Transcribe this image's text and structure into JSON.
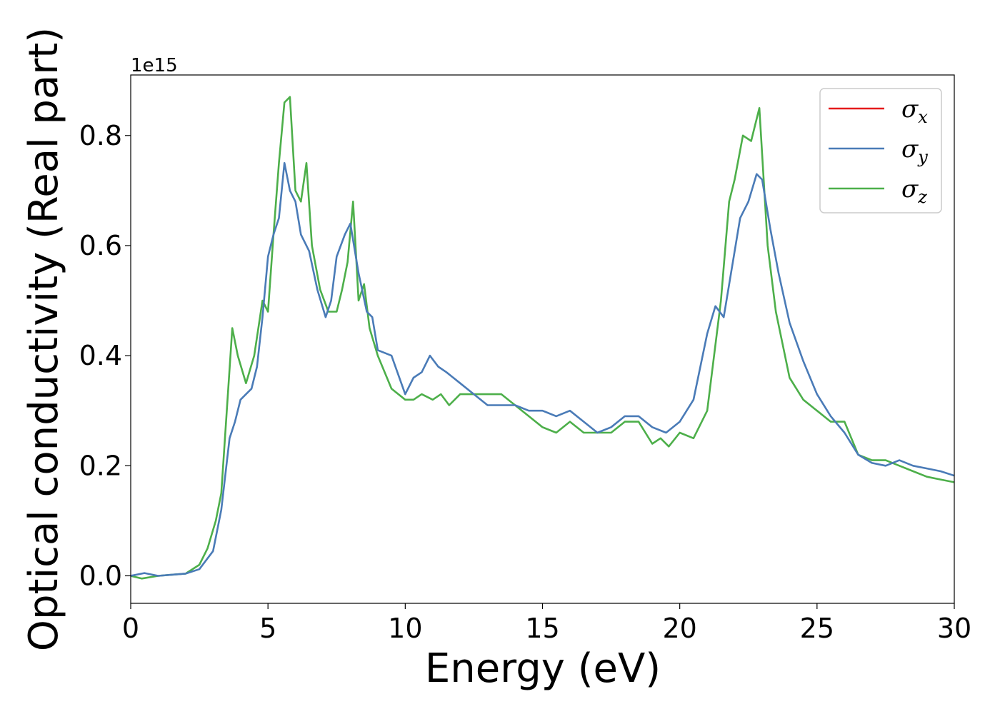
{
  "chart_data": {
    "type": "line",
    "xlabel": "Energy (eV)",
    "ylabel": "Optical conductivity (Real part)",
    "y_offset_text": "1e15",
    "xlim": [
      0,
      30
    ],
    "ylim": [
      -0.05,
      0.91
    ],
    "xticks": [
      0,
      5,
      10,
      15,
      20,
      25,
      30
    ],
    "xtick_labels": [
      "0",
      "5",
      "10",
      "15",
      "20",
      "25",
      "30"
    ],
    "yticks": [
      0.0,
      0.2,
      0.4,
      0.6,
      0.8
    ],
    "ytick_labels": [
      "0.0",
      "0.2",
      "0.4",
      "0.6",
      "0.8"
    ],
    "grid": false,
    "legend_position": "top-right",
    "series": [
      {
        "name": "σx",
        "symbol": "σ",
        "sub": "x",
        "color": "#e41a1c",
        "legend_only": true,
        "x": [
          0,
          0.5,
          1,
          1.5,
          2,
          2.5,
          3,
          3.3,
          3.6,
          3.8,
          4,
          4.2,
          4.4,
          4.6,
          4.8,
          5,
          5.2,
          5.4,
          5.6,
          5.8,
          6,
          6.2,
          6.5,
          6.8,
          7.1,
          7.3,
          7.5,
          7.8,
          8,
          8.3,
          8.6,
          8.8,
          9,
          9.5,
          10,
          10.3,
          10.6,
          10.9,
          11.2,
          11.5,
          12,
          12.5,
          13,
          13.5,
          14,
          14.5,
          15,
          15.5,
          16,
          16.5,
          17,
          17.5,
          18,
          18.5,
          19,
          19.5,
          20,
          20.5,
          21,
          21.3,
          21.6,
          21.9,
          22.2,
          22.5,
          22.8,
          23,
          23.3,
          23.6,
          24,
          24.5,
          25,
          25.5,
          26,
          26.5,
          27,
          27.5,
          28,
          28.5,
          29,
          29.5,
          30
        ],
        "y": [
          0,
          0.005,
          0,
          0.002,
          0.004,
          0.012,
          0.045,
          0.12,
          0.25,
          0.28,
          0.32,
          0.33,
          0.34,
          0.38,
          0.47,
          0.58,
          0.62,
          0.65,
          0.75,
          0.7,
          0.68,
          0.62,
          0.59,
          0.52,
          0.47,
          0.5,
          0.58,
          0.62,
          0.64,
          0.55,
          0.48,
          0.47,
          0.41,
          0.4,
          0.33,
          0.36,
          0.37,
          0.4,
          0.38,
          0.37,
          0.35,
          0.33,
          0.31,
          0.31,
          0.31,
          0.3,
          0.3,
          0.29,
          0.3,
          0.28,
          0.26,
          0.27,
          0.29,
          0.29,
          0.27,
          0.26,
          0.28,
          0.32,
          0.44,
          0.49,
          0.47,
          0.56,
          0.65,
          0.68,
          0.73,
          0.72,
          0.63,
          0.55,
          0.46,
          0.39,
          0.33,
          0.29,
          0.26,
          0.22,
          0.205,
          0.2,
          0.21,
          0.2,
          0.195,
          0.19,
          0.182
        ]
      },
      {
        "name": "σy",
        "symbol": "σ",
        "sub": "y",
        "color": "#4a7bb7",
        "x": [
          0,
          0.5,
          1,
          1.5,
          2,
          2.5,
          3,
          3.3,
          3.6,
          3.8,
          4,
          4.2,
          4.4,
          4.6,
          4.8,
          5,
          5.2,
          5.4,
          5.6,
          5.8,
          6,
          6.2,
          6.5,
          6.8,
          7.1,
          7.3,
          7.5,
          7.8,
          8,
          8.3,
          8.6,
          8.8,
          9,
          9.5,
          10,
          10.3,
          10.6,
          10.9,
          11.2,
          11.5,
          12,
          12.5,
          13,
          13.5,
          14,
          14.5,
          15,
          15.5,
          16,
          16.5,
          17,
          17.5,
          18,
          18.5,
          19,
          19.5,
          20,
          20.5,
          21,
          21.3,
          21.6,
          21.9,
          22.2,
          22.5,
          22.8,
          23,
          23.3,
          23.6,
          24,
          24.5,
          25,
          25.5,
          26,
          26.5,
          27,
          27.5,
          28,
          28.5,
          29,
          29.5,
          30
        ],
        "y": [
          0,
          0.005,
          0,
          0.002,
          0.004,
          0.012,
          0.045,
          0.12,
          0.25,
          0.28,
          0.32,
          0.33,
          0.34,
          0.38,
          0.47,
          0.58,
          0.62,
          0.65,
          0.75,
          0.7,
          0.68,
          0.62,
          0.59,
          0.52,
          0.47,
          0.5,
          0.58,
          0.62,
          0.64,
          0.55,
          0.48,
          0.47,
          0.41,
          0.4,
          0.33,
          0.36,
          0.37,
          0.4,
          0.38,
          0.37,
          0.35,
          0.33,
          0.31,
          0.31,
          0.31,
          0.3,
          0.3,
          0.29,
          0.3,
          0.28,
          0.26,
          0.27,
          0.29,
          0.29,
          0.27,
          0.26,
          0.28,
          0.32,
          0.44,
          0.49,
          0.47,
          0.56,
          0.65,
          0.68,
          0.73,
          0.72,
          0.63,
          0.55,
          0.46,
          0.39,
          0.33,
          0.29,
          0.26,
          0.22,
          0.205,
          0.2,
          0.21,
          0.2,
          0.195,
          0.19,
          0.182
        ]
      },
      {
        "name": "σz",
        "symbol": "σ",
        "sub": "z",
        "color": "#4daf4a",
        "x": [
          0,
          0.4,
          1,
          1.5,
          2,
          2.5,
          2.8,
          3.1,
          3.3,
          3.5,
          3.7,
          3.9,
          4.2,
          4.5,
          4.8,
          5,
          5.2,
          5.4,
          5.6,
          5.8,
          6,
          6.2,
          6.4,
          6.6,
          6.9,
          7.2,
          7.5,
          7.7,
          7.9,
          8.1,
          8.3,
          8.5,
          8.7,
          9,
          9.5,
          10,
          10.3,
          10.6,
          11,
          11.3,
          11.6,
          12,
          12.5,
          13,
          13.5,
          14,
          14.5,
          15,
          15.5,
          16,
          16.5,
          17,
          17.5,
          18,
          18.5,
          19,
          19.3,
          19.6,
          20,
          20.5,
          21,
          21.5,
          21.8,
          22,
          22.3,
          22.6,
          22.9,
          23.2,
          23.5,
          24,
          24.5,
          25,
          25.5,
          26,
          26.5,
          27,
          27.5,
          28,
          28.5,
          29,
          29.5,
          30
        ],
        "y": [
          0,
          -0.005,
          0,
          0.002,
          0.004,
          0.02,
          0.05,
          0.1,
          0.15,
          0.3,
          0.45,
          0.4,
          0.35,
          0.4,
          0.5,
          0.48,
          0.62,
          0.75,
          0.86,
          0.87,
          0.7,
          0.68,
          0.75,
          0.6,
          0.52,
          0.48,
          0.48,
          0.52,
          0.57,
          0.68,
          0.5,
          0.53,
          0.45,
          0.4,
          0.34,
          0.32,
          0.32,
          0.33,
          0.32,
          0.33,
          0.31,
          0.33,
          0.33,
          0.33,
          0.33,
          0.31,
          0.29,
          0.27,
          0.26,
          0.28,
          0.26,
          0.26,
          0.26,
          0.28,
          0.28,
          0.24,
          0.25,
          0.235,
          0.26,
          0.25,
          0.3,
          0.5,
          0.68,
          0.72,
          0.8,
          0.79,
          0.85,
          0.6,
          0.48,
          0.36,
          0.32,
          0.3,
          0.28,
          0.28,
          0.22,
          0.21,
          0.21,
          0.2,
          0.19,
          0.18,
          0.175,
          0.17
        ]
      }
    ]
  }
}
